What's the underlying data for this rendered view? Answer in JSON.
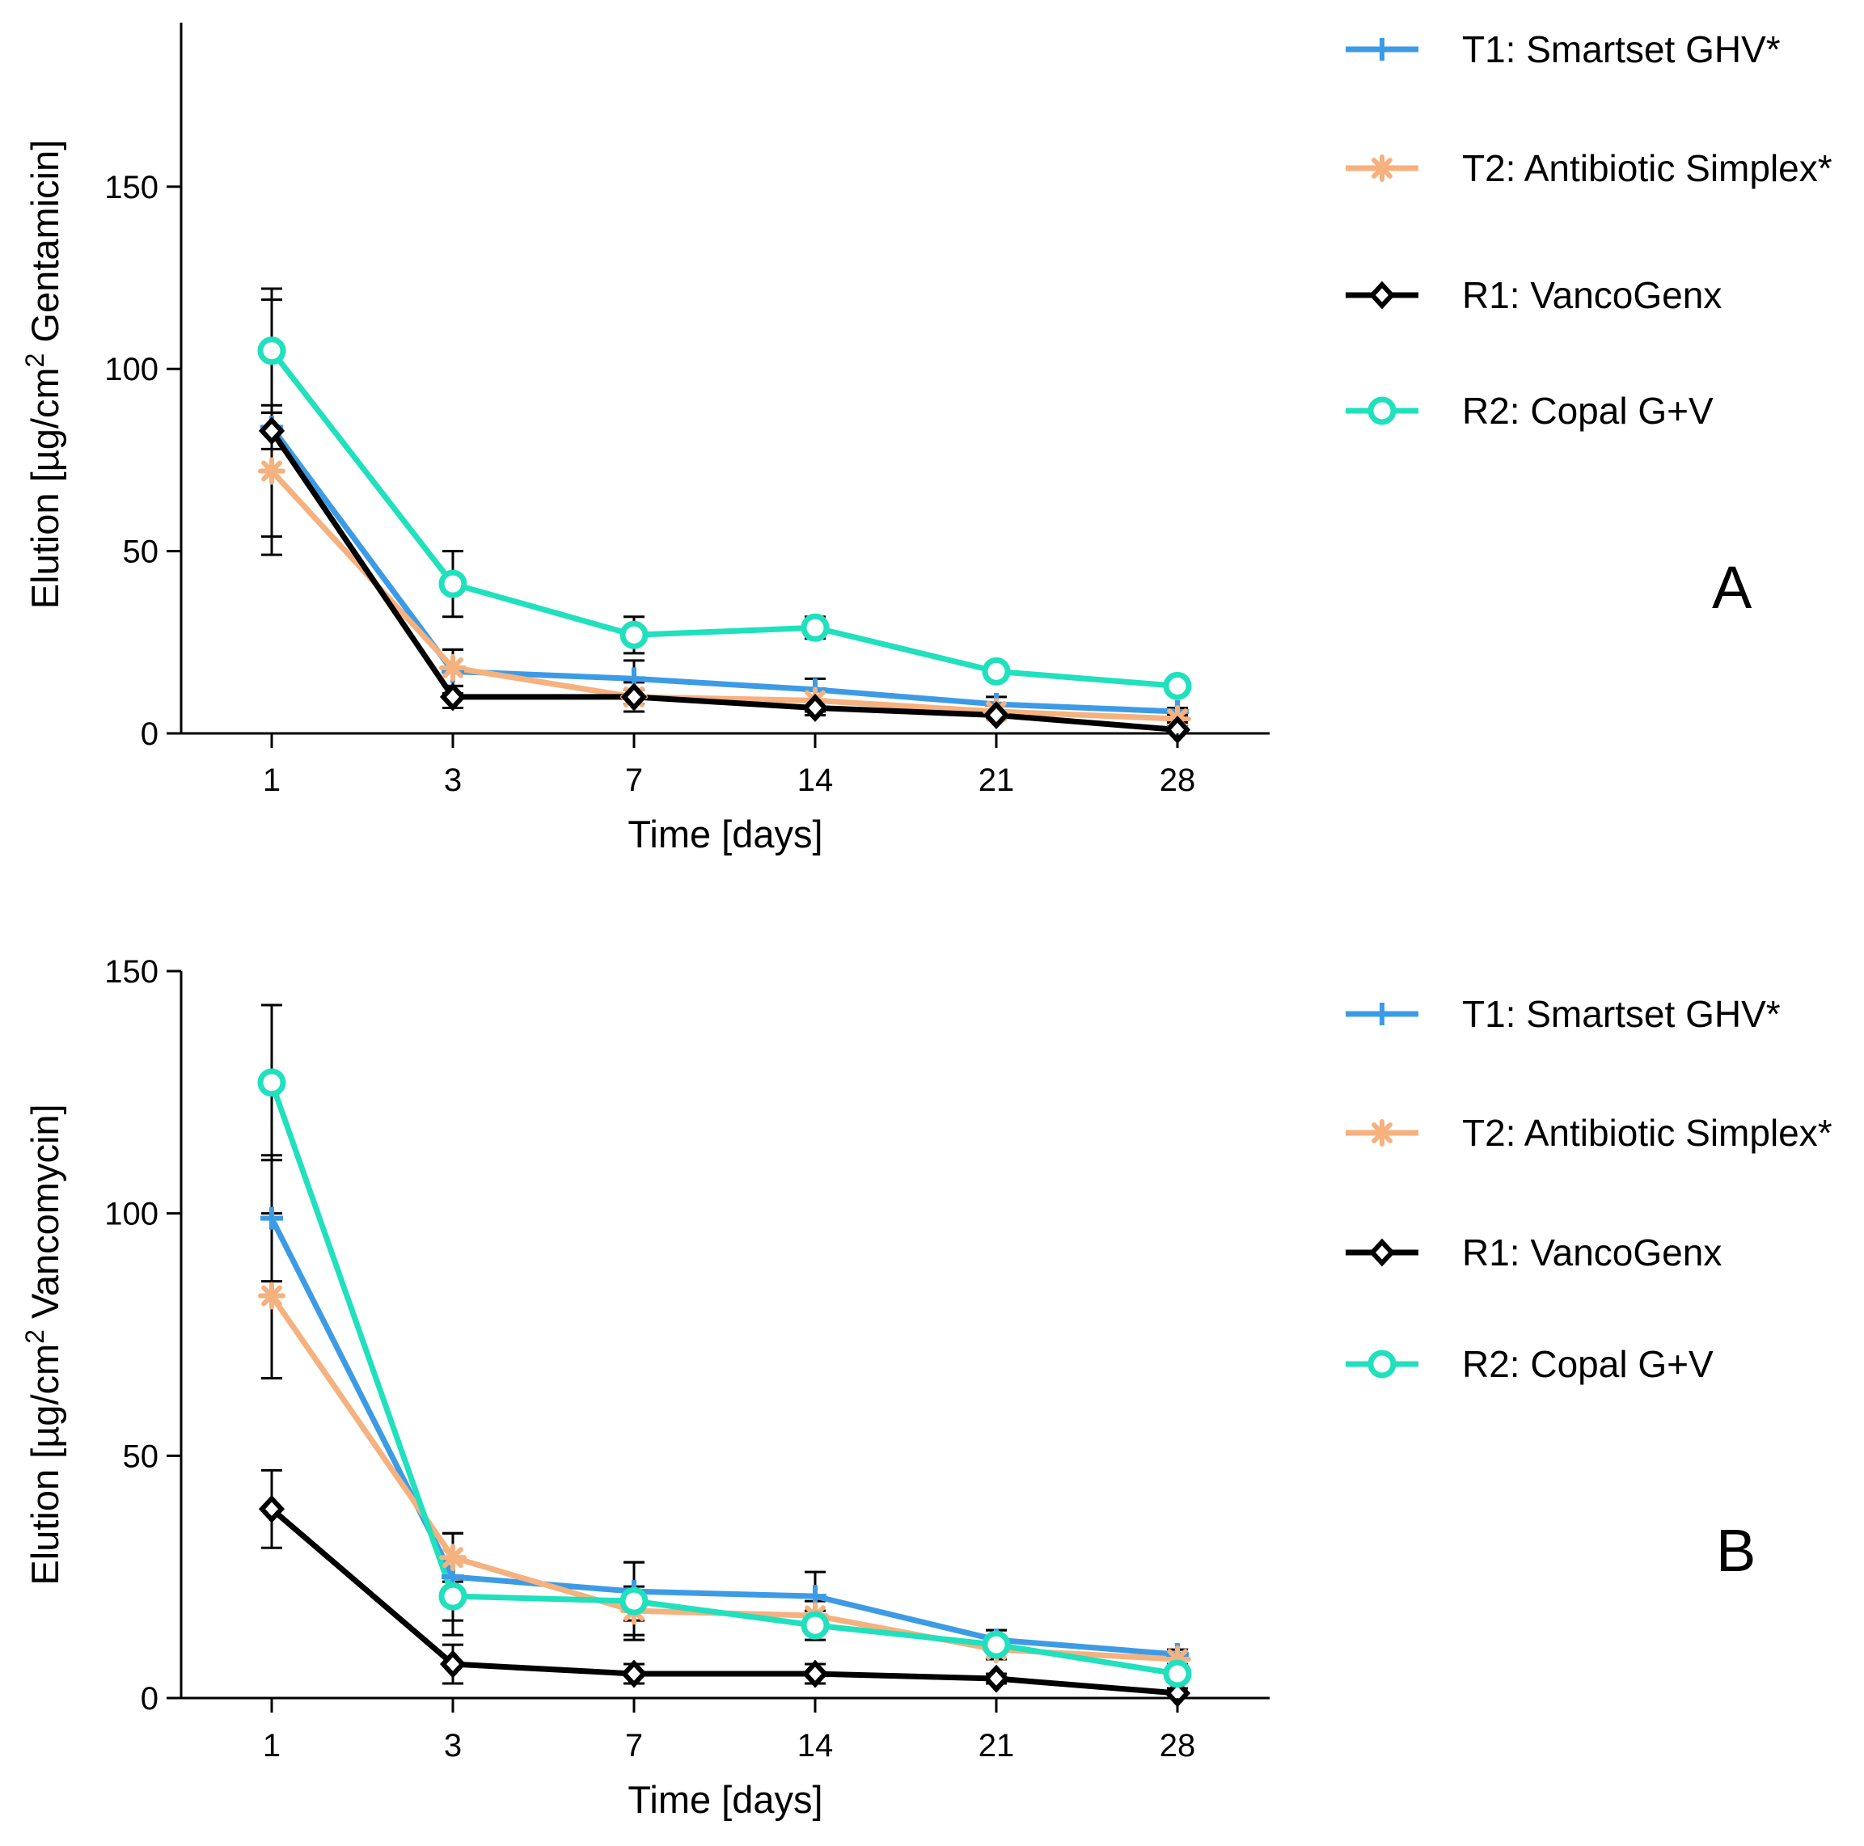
{
  "chart_data": [
    {
      "type": "line",
      "panel_label": "A",
      "x": [
        "1",
        "3",
        "7",
        "14",
        "21",
        "28"
      ],
      "xlabel": "Time [days]",
      "ylabel": "Elution [µg/cm² Gentamicin]",
      "ylim": [
        0,
        195
      ],
      "yticks": [
        0,
        50,
        100,
        150
      ],
      "grid": false,
      "legend": "top-right",
      "series": [
        {
          "name": "T1: Smartset GHV*",
          "color": "#3d9be6",
          "marker": "plus",
          "values": [
            84,
            17,
            15,
            12,
            8,
            6
          ],
          "err": [
            35,
            6,
            5,
            3,
            2,
            1
          ]
        },
        {
          "name": "T2: Antibiotic Simplex*",
          "color": "#f5b17e",
          "marker": "asterisk",
          "values": [
            72,
            18,
            10,
            9,
            6,
            4
          ],
          "err": [
            18,
            5,
            4,
            3,
            2,
            1
          ]
        },
        {
          "name": "R1: VancoGenx",
          "color": "#000000",
          "marker": "diamond",
          "values": [
            83,
            10,
            10,
            7,
            5,
            1
          ],
          "err": [
            5,
            3,
            2,
            2,
            1,
            1
          ]
        },
        {
          "name": "R2: Copal G+V",
          "color": "#20e0bd",
          "marker": "circle",
          "values": [
            105,
            41,
            27,
            29,
            17,
            13
          ],
          "err": [
            17,
            9,
            5,
            3,
            2,
            2
          ]
        }
      ]
    },
    {
      "type": "line",
      "panel_label": "B",
      "x": [
        "1",
        "3",
        "7",
        "14",
        "21",
        "28"
      ],
      "xlabel": "Time [days]",
      "ylabel": "Elution [µg/cm² Vancomycin]",
      "ylim": [
        0,
        150
      ],
      "yticks": [
        0,
        50,
        100,
        150
      ],
      "grid": false,
      "legend": "top-right",
      "series": [
        {
          "name": "T1: Smartset GHV*",
          "color": "#3d9be6",
          "marker": "plus",
          "values": [
            99,
            25,
            22,
            21,
            12,
            9
          ],
          "err": [
            13,
            9,
            6,
            5,
            2,
            1
          ]
        },
        {
          "name": "T2: Antibiotic Simplex*",
          "color": "#f5b17e",
          "marker": "asterisk",
          "values": [
            83,
            29,
            18,
            17,
            10,
            8
          ],
          "err": [
            17,
            5,
            5,
            3,
            2,
            1
          ]
        },
        {
          "name": "R1: VancoGenx",
          "color": "#000000",
          "marker": "diamond",
          "values": [
            39,
            7,
            5,
            5,
            4,
            1
          ],
          "err": [
            8,
            4,
            2,
            2,
            1,
            1
          ]
        },
        {
          "name": "R2: Copal G+V",
          "color": "#20e0bd",
          "marker": "circle",
          "values": [
            127,
            21,
            20,
            15,
            11,
            5
          ],
          "err": [
            16,
            8,
            8,
            3,
            3,
            1
          ]
        }
      ]
    }
  ]
}
